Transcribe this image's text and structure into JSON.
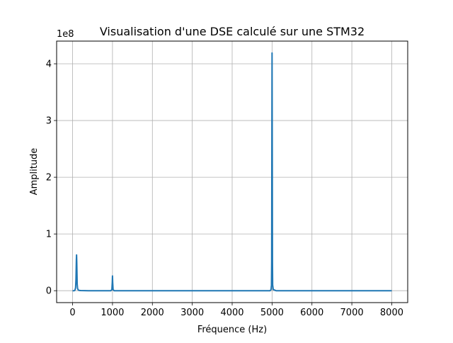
{
  "chart_data": {
    "type": "line",
    "title": "Visualisation d'une DSE calculé sur une STM32",
    "xlabel": "Fréquence (Hz)",
    "ylabel": "Amplitude",
    "y_offset_text": "1e8",
    "xlim": [
      -400,
      8400
    ],
    "ylim": [
      -0.21,
      4.4
    ],
    "y_scale_exponent": 8,
    "grid": true,
    "x_ticks": [
      0,
      1000,
      2000,
      3000,
      4000,
      5000,
      6000,
      7000,
      8000
    ],
    "x_tick_labels": [
      "0",
      "1000",
      "2000",
      "3000",
      "4000",
      "5000",
      "6000",
      "7000",
      "8000"
    ],
    "y_ticks": [
      0,
      1,
      2,
      3,
      4
    ],
    "y_tick_labels": [
      "0",
      "1",
      "2",
      "3",
      "4"
    ],
    "series": [
      {
        "color": "#1f77b4",
        "x": [
          0,
          40,
          60,
          75,
          85,
          95,
          100,
          105,
          115,
          125,
          140,
          160,
          200,
          400,
          600,
          800,
          960,
          985,
          995,
          1000,
          1005,
          1015,
          1040,
          1200,
          2000,
          3000,
          4000,
          4950,
          4975,
          4985,
          4990,
          4995,
          5000,
          5005,
          5010,
          5015,
          5030,
          5100,
          6000,
          7000,
          8000
        ],
        "y": [
          0,
          0,
          0.01,
          0.05,
          0.2,
          0.55,
          0.63,
          0.5,
          0.12,
          0.04,
          0.015,
          0.006,
          0.002,
          0,
          0,
          0,
          0,
          0.02,
          0.15,
          0.26,
          0.15,
          0.02,
          0,
          0,
          0,
          0,
          0,
          0,
          0.02,
          0.1,
          0.5,
          2.5,
          4.19,
          2.5,
          0.5,
          0.1,
          0.02,
          0,
          0,
          0,
          0
        ]
      }
    ]
  }
}
